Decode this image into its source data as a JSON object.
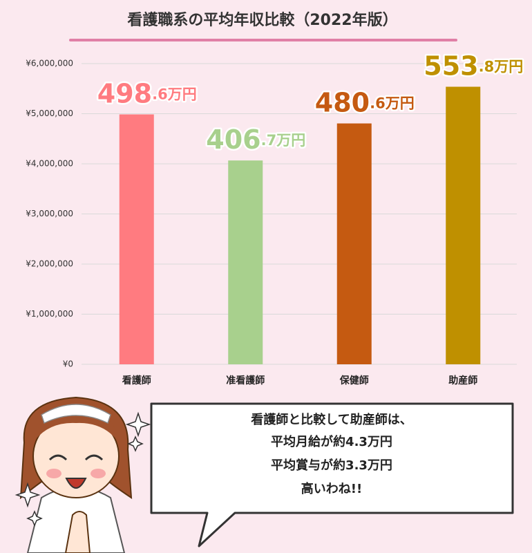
{
  "chart_data": {
    "type": "bar",
    "title": "看護職系の平均年収比較（2022年版）",
    "categories": [
      "看護師",
      "准看護師",
      "保健師",
      "助産師"
    ],
    "values": [
      4986000,
      4067000,
      4806000,
      5538000
    ],
    "value_labels": [
      "498.6万円",
      "406.7万円",
      "480.6万円",
      "553.8万円"
    ],
    "colors": [
      "#ff7b80",
      "#a8d08d",
      "#c55a11",
      "#bf9000"
    ],
    "ylim": [
      0,
      6000000
    ],
    "yticks": [
      {
        "value": 0,
        "label": "¥0"
      },
      {
        "value": 1000000,
        "label": "¥1,000,000"
      },
      {
        "value": 2000000,
        "label": "¥2,000,000"
      },
      {
        "value": 3000000,
        "label": "¥3,000,000"
      },
      {
        "value": 4000000,
        "label": "¥4,000,000"
      },
      {
        "value": 5000000,
        "label": "¥5,000,000"
      },
      {
        "value": 6000000,
        "label": "¥6,000,000"
      }
    ],
    "grid": true
  },
  "speech_bubble": {
    "lines": [
      "看護師と比較して助産師は、",
      "平均月給が約4.3万円",
      "平均賞与が約3.3万円",
      "高いわね!!"
    ]
  }
}
